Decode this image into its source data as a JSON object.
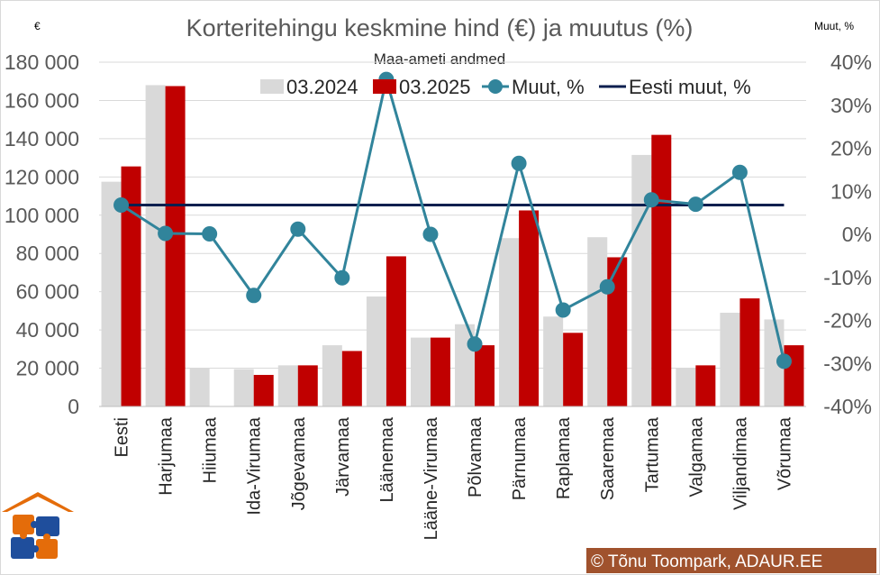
{
  "chart_data": {
    "type": "bar",
    "title": "Korteritehingu keskmine hind (€) ja muutus (%)",
    "subtitle": "Maa-ameti andmed",
    "left_unit": "€",
    "right_unit": "Muut, %",
    "categories": [
      "Eesti",
      "Harjumaa",
      "Hiiumaa",
      "Ida-Virumaa",
      "Jõgevamaa",
      "Järvamaa",
      "Läänemaa",
      "Lääne-Virumaa",
      "Põlvamaa",
      "Pärnumaa",
      "Raplamaa",
      "Saaremaa",
      "Tartumaa",
      "Valgamaa",
      "Viljandimaa",
      "Võrumaa"
    ],
    "series": [
      {
        "name": "03.2024",
        "type": "bar",
        "axis": "left",
        "color": "#d9d9d9",
        "values": [
          117500,
          168000,
          20000,
          19500,
          21500,
          32000,
          57500,
          36000,
          43000,
          88000,
          47000,
          88500,
          131500,
          20000,
          49000,
          45500
        ]
      },
      {
        "name": "03.2025",
        "type": "bar",
        "axis": "left",
        "color": "#c00000",
        "values": [
          125500,
          167500,
          null,
          16500,
          21500,
          29000,
          78500,
          36000,
          32000,
          102500,
          38500,
          78000,
          142000,
          21500,
          56500,
          32000
        ]
      },
      {
        "name": "Muut, %",
        "type": "line",
        "axis": "right",
        "color": "#31849b",
        "values": [
          6.8,
          0.2,
          0.1,
          -14.2,
          1.2,
          -10.1,
          36.0,
          0.0,
          -25.5,
          16.5,
          -17.6,
          -12.2,
          8.0,
          7.0,
          14.4,
          -29.5
        ]
      },
      {
        "name": "Eesti muut, %",
        "type": "hline",
        "axis": "right",
        "color": "#0b1f4f",
        "value": 6.8
      }
    ],
    "left_axis": {
      "min": 0,
      "max": 180000,
      "step": 20000,
      "tick_labels": [
        "0",
        "20 000",
        "40 000",
        "60 000",
        "80 000",
        "100 000",
        "120 000",
        "140 000",
        "160 000",
        "180 000"
      ]
    },
    "right_axis": {
      "min": -40,
      "max": 40,
      "step": 10,
      "tick_labels": [
        "-40%",
        "-30%",
        "-20%",
        "-10%",
        "0%",
        "10%",
        "20%",
        "30%",
        "40%"
      ]
    },
    "grid": true,
    "legend_position": "top"
  },
  "copyright": "© Tõnu Toompark, ADAUR.EE",
  "logo": {
    "roof_color": "#e46c0a",
    "puzzle_colors": [
      "#e46c0a",
      "#1f4e9c"
    ]
  }
}
